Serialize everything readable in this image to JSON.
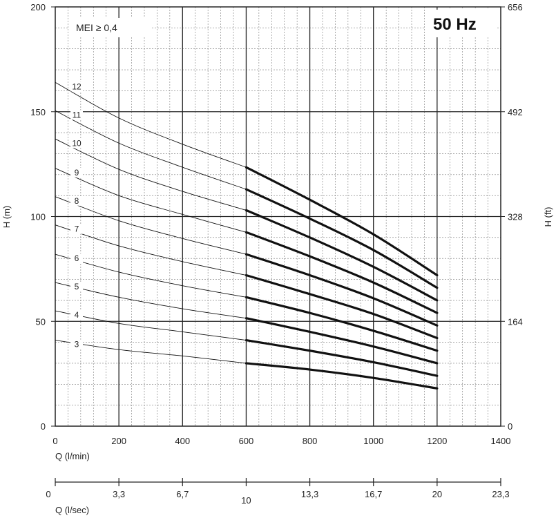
{
  "chart_data": {
    "type": "line",
    "annotation": "MEI ≥ 0,4",
    "frequency_badge": "50 Hz",
    "xlabel": "Q (l/min)",
    "xlim": [
      0,
      1400
    ],
    "xticks": [
      "0",
      "200",
      "400",
      "600",
      "800",
      "1000",
      "1200",
      "1400"
    ],
    "ylabel_left": "H (m)",
    "ylim": [
      0,
      200
    ],
    "yticks_left": [
      "0",
      "50",
      "100",
      "150",
      "200"
    ],
    "ylabel_right": "H (ft)",
    "yticks_right": [
      "0",
      "164",
      "328",
      "492",
      "656"
    ],
    "secondary_x": {
      "label": "Q (l/sec)",
      "ticks": [
        "0",
        "3,3",
        "6,7",
        "10",
        "13,3",
        "16,7",
        "20",
        "23,3"
      ]
    },
    "grid": true,
    "operating_range": [
      600,
      1200
    ],
    "series": [
      {
        "name": "3",
        "x": [
          0,
          200,
          400,
          600,
          800,
          1000,
          1200
        ],
        "y": [
          41,
          36.5,
          33.5,
          30,
          27,
          23,
          18
        ]
      },
      {
        "name": "4",
        "x": [
          0,
          200,
          400,
          600,
          800,
          1000,
          1200
        ],
        "y": [
          55,
          49,
          45,
          41,
          36,
          30.5,
          24
        ]
      },
      {
        "name": "5",
        "x": [
          0,
          200,
          400,
          600,
          800,
          1000,
          1200
        ],
        "y": [
          68.5,
          61.5,
          56,
          51.5,
          45,
          38,
          30
        ]
      },
      {
        "name": "6",
        "x": [
          0,
          200,
          400,
          600,
          800,
          1000,
          1200
        ],
        "y": [
          82,
          73.5,
          67,
          61.5,
          54,
          45.5,
          36
        ]
      },
      {
        "name": "7",
        "x": [
          0,
          200,
          400,
          600,
          800,
          1000,
          1200
        ],
        "y": [
          96,
          86,
          78.5,
          72,
          63,
          53.5,
          42
        ]
      },
      {
        "name": "8",
        "x": [
          0,
          200,
          400,
          600,
          800,
          1000,
          1200
        ],
        "y": [
          109.5,
          98,
          89.5,
          82,
          72,
          61,
          48
        ]
      },
      {
        "name": "9",
        "x": [
          0,
          200,
          400,
          600,
          800,
          1000,
          1200
        ],
        "y": [
          123,
          110,
          101,
          92.5,
          81,
          68.5,
          54
        ]
      },
      {
        "name": "10",
        "x": [
          0,
          200,
          400,
          600,
          800,
          1000,
          1200
        ],
        "y": [
          137,
          122.5,
          112,
          103,
          90,
          76,
          60
        ]
      },
      {
        "name": "11",
        "x": [
          0,
          200,
          400,
          600,
          800,
          1000,
          1200
        ],
        "y": [
          150.5,
          135,
          123.5,
          113,
          99,
          84,
          66
        ]
      },
      {
        "name": "12",
        "x": [
          0,
          200,
          400,
          600,
          800,
          1000,
          1200
        ],
        "y": [
          164,
          147,
          134.5,
          123.5,
          108,
          91.5,
          72
        ]
      }
    ]
  }
}
